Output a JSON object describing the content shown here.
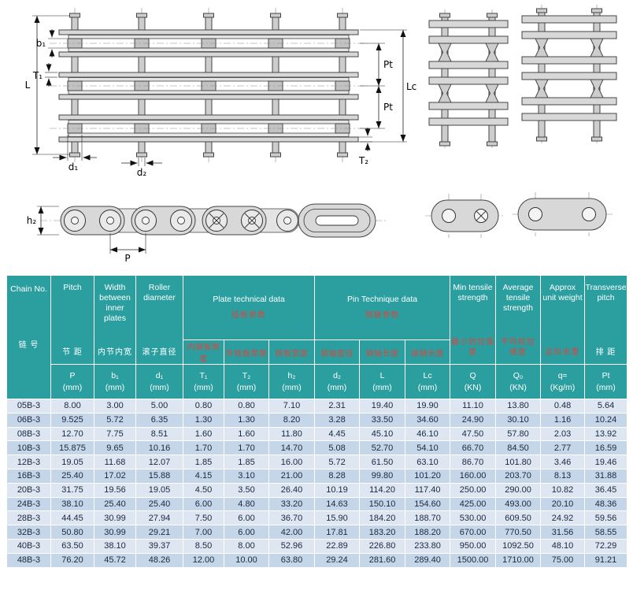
{
  "colors": {
    "header_teal": "#2b9fa0",
    "accent_red": "#d24a42",
    "row_light": "#dde6f1",
    "row_dark": "#c6d6e9",
    "drawing_gray": "#d8d8d8"
  },
  "drawing": {
    "labels": {
      "l": "L",
      "b1": "b₁",
      "t1": "T₁",
      "d1": "d₁",
      "d2": "d₂",
      "pt_upper": "Pt",
      "pt_lower": "Pt",
      "lc": "Lc",
      "t2": "T₂",
      "h2": "h₂",
      "p": "P"
    }
  },
  "table": {
    "header": {
      "chain_no_en": "Chain No.",
      "chain_no_zh": "链 号",
      "pitch_en": "Pitch",
      "pitch_zh": "节 距",
      "width_en": "Width between inner plates",
      "width_zh": "内节内宽",
      "roller_en": "Roller diameter",
      "roller_zh": "滚子直径",
      "plate_group_en": "Plate technical data",
      "plate_group_zh": "链板参数",
      "plate_sub": [
        "内链板厚度",
        "外链板厚度",
        "链板宽度"
      ],
      "pin_group_en": "Pin Technique data",
      "pin_group_zh": "销轴参数",
      "pin_sub": [
        "销轴直径",
        "销轴长度",
        "接销长度"
      ],
      "min_tensile_en": "Min tensile strength",
      "min_tensile_zh": "最小抗拉强度",
      "avg_tensile_en": "Average tensile strength",
      "avg_tensile_zh": "平均抗拉强度",
      "approx_weight_en": "Approx unit weight",
      "approx_weight_zh": "近似米重",
      "transverse_en": "Transverse pitch",
      "transverse_zh": "排 距"
    },
    "units": [
      "P\n(mm)",
      "b₁\n(mm)",
      "d₁\n(mm)",
      "T₁\n(mm)",
      "T₂\n(mm)",
      "h₂\n(mm)",
      "d₂\n(mm)",
      "L\n(mm)",
      "Lc\n(mm)",
      "Q\n(KN)",
      "Q₀\n(KN)",
      "q≈\n(Kg/m)",
      "Pt\n(mm)"
    ],
    "rows": [
      [
        "05B-3",
        "8.00",
        "3.00",
        "5.00",
        "0.80",
        "0.80",
        "7.10",
        "2.31",
        "19.40",
        "19.90",
        "11.10",
        "13.80",
        "0.48",
        "5.64"
      ],
      [
        "06B-3",
        "9.525",
        "5.72",
        "6.35",
        "1.30",
        "1.30",
        "8.20",
        "3.28",
        "33.50",
        "34.60",
        "24.90",
        "30.10",
        "1.16",
        "10.24"
      ],
      [
        "08B-3",
        "12.70",
        "7.75",
        "8.51",
        "1.60",
        "1.60",
        "11.80",
        "4.45",
        "45.10",
        "46.10",
        "47.50",
        "57.80",
        "2.03",
        "13.92"
      ],
      [
        "10B-3",
        "15.875",
        "9.65",
        "10.16",
        "1.70",
        "1.70",
        "14.70",
        "5.08",
        "52.70",
        "54.10",
        "66.70",
        "84.50",
        "2.77",
        "16.59"
      ],
      [
        "12B-3",
        "19.05",
        "11.68",
        "12.07",
        "1.85",
        "1.85",
        "16.00",
        "5.72",
        "61.50",
        "63.10",
        "86.70",
        "101.80",
        "3.46",
        "19.46"
      ],
      [
        "16B-3",
        "25.40",
        "17.02",
        "15.88",
        "4.15",
        "3.10",
        "21.00",
        "8.28",
        "99.80",
        "101.20",
        "160.00",
        "203.70",
        "8.13",
        "31.88"
      ],
      [
        "20B-3",
        "31.75",
        "19.56",
        "19.05",
        "4.50",
        "3.50",
        "26.40",
        "10.19",
        "114.20",
        "117.40",
        "250.00",
        "290.00",
        "10.82",
        "36.45"
      ],
      [
        "24B-3",
        "38.10",
        "25.40",
        "25.40",
        "6.00",
        "4.80",
        "33.20",
        "14.63",
        "150.10",
        "154.60",
        "425.00",
        "493.00",
        "20.10",
        "48.36"
      ],
      [
        "28B-3",
        "44.45",
        "30.99",
        "27.94",
        "7.50",
        "6.00",
        "36.70",
        "15.90",
        "184.20",
        "188.70",
        "530.00",
        "609.50",
        "24.92",
        "59.56"
      ],
      [
        "32B-3",
        "50.80",
        "30.99",
        "29.21",
        "7.00",
        "6.00",
        "42.00",
        "17.81",
        "183.20",
        "188.20",
        "670.00",
        "770.50",
        "31.56",
        "58.55"
      ],
      [
        "40B-3",
        "63.50",
        "38.10",
        "39.37",
        "8.50",
        "8.00",
        "52.96",
        "22.89",
        "226.80",
        "233.80",
        "950.00",
        "1092.50",
        "48.10",
        "72.29"
      ],
      [
        "48B-3",
        "76.20",
        "45.72",
        "48.26",
        "12.00",
        "10.00",
        "63.80",
        "29.24",
        "281.60",
        "289.40",
        "1500.00",
        "1710.00",
        "75.00",
        "91.21"
      ]
    ]
  }
}
